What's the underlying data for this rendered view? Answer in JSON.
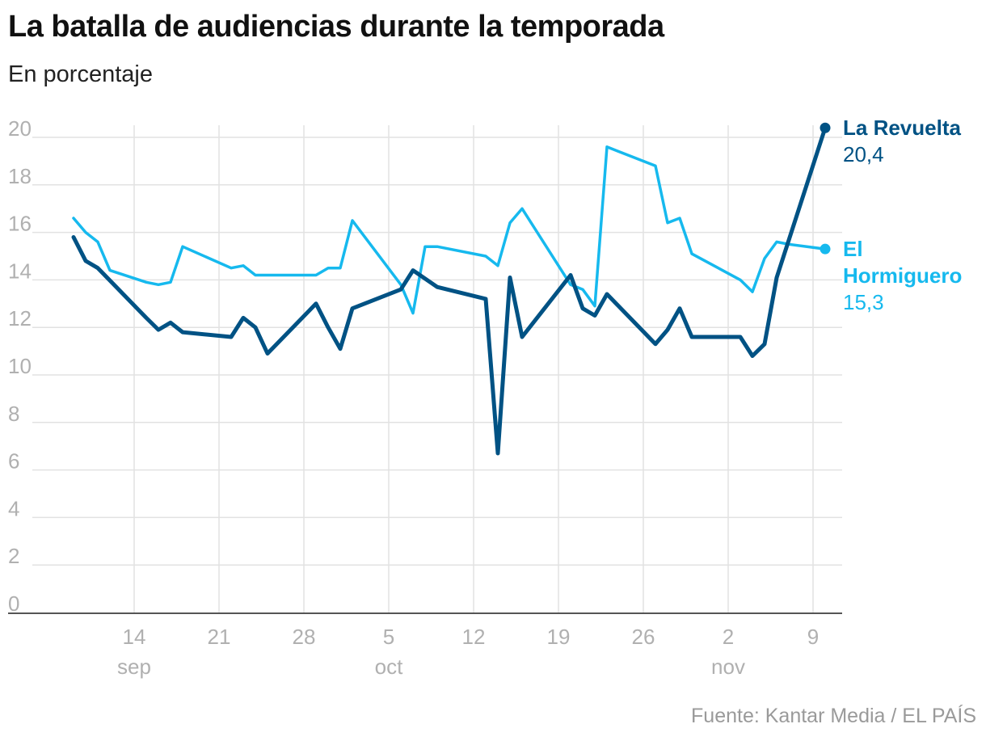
{
  "title": "La batalla de audiencias durante la temporada",
  "subtitle": "En porcentaje",
  "source": "Fuente: Kantar Media / EL PAÍS",
  "colors": {
    "la_revuelta": "#005284",
    "el_hormiguero": "#16b9ee",
    "grid": "#e2e2e2",
    "axis": "#555555",
    "tick_text": "#b0b0b0"
  },
  "chart_data": {
    "type": "line",
    "x_unit": "day",
    "ylim": [
      0,
      20
    ],
    "y_ticks": [
      "0",
      "2",
      "4",
      "6",
      "8",
      "10",
      "12",
      "14",
      "16",
      "18",
      "20"
    ],
    "x_ticks": [
      {
        "date": "2024-09-14",
        "label": "14",
        "month": "sep"
      },
      {
        "date": "2024-09-21",
        "label": "21",
        "month": ""
      },
      {
        "date": "2024-09-28",
        "label": "28",
        "month": ""
      },
      {
        "date": "2024-10-05",
        "label": "5",
        "month": "oct"
      },
      {
        "date": "2024-10-12",
        "label": "12",
        "month": ""
      },
      {
        "date": "2024-10-19",
        "label": "19",
        "month": ""
      },
      {
        "date": "2024-10-26",
        "label": "26",
        "month": ""
      },
      {
        "date": "2024-11-02",
        "label": "2",
        "month": "nov"
      },
      {
        "date": "2024-11-09",
        "label": "9",
        "month": ""
      }
    ],
    "grid": true,
    "series": [
      {
        "name": "El Hormiguero",
        "end_label_line1": "El",
        "end_label_line2": "Hormiguero",
        "end_value_label": "15,3",
        "color": "#16b9ee",
        "points": [
          [
            "2024-09-09",
            16.6
          ],
          [
            "2024-09-10",
            16.0
          ],
          [
            "2024-09-11",
            15.6
          ],
          [
            "2024-09-12",
            14.4
          ],
          [
            "2024-09-15",
            13.9
          ],
          [
            "2024-09-16",
            13.8
          ],
          [
            "2024-09-17",
            13.9
          ],
          [
            "2024-09-18",
            15.4
          ],
          [
            "2024-09-22",
            14.5
          ],
          [
            "2024-09-23",
            14.6
          ],
          [
            "2024-09-24",
            14.2
          ],
          [
            "2024-09-29",
            14.2
          ],
          [
            "2024-09-30",
            14.5
          ],
          [
            "2024-10-01",
            14.5
          ],
          [
            "2024-10-02",
            16.5
          ],
          [
            "2024-10-06",
            13.8
          ],
          [
            "2024-10-07",
            12.6
          ],
          [
            "2024-10-08",
            15.4
          ],
          [
            "2024-10-09",
            15.4
          ],
          [
            "2024-10-13",
            15.0
          ],
          [
            "2024-10-14",
            14.6
          ],
          [
            "2024-10-15",
            16.4
          ],
          [
            "2024-10-16",
            17.0
          ],
          [
            "2024-10-20",
            13.8
          ],
          [
            "2024-10-21",
            13.6
          ],
          [
            "2024-10-22",
            12.9
          ],
          [
            "2024-10-23",
            19.6
          ],
          [
            "2024-10-27",
            18.8
          ],
          [
            "2024-10-28",
            16.4
          ],
          [
            "2024-10-29",
            16.6
          ],
          [
            "2024-10-30",
            15.1
          ],
          [
            "2024-11-03",
            14.0
          ],
          [
            "2024-11-04",
            13.5
          ],
          [
            "2024-11-05",
            14.9
          ],
          [
            "2024-11-06",
            15.6
          ],
          [
            "2024-11-07",
            15.5
          ],
          [
            "2024-11-10",
            15.3
          ]
        ]
      },
      {
        "name": "La Revuelta",
        "end_label_line1": "La Revuelta",
        "end_label_line2": "",
        "end_value_label": "20,4",
        "color": "#005284",
        "points": [
          [
            "2024-09-09",
            15.8
          ],
          [
            "2024-09-10",
            14.8
          ],
          [
            "2024-09-11",
            14.5
          ],
          [
            "2024-09-15",
            12.4
          ],
          [
            "2024-09-16",
            11.9
          ],
          [
            "2024-09-17",
            12.2
          ],
          [
            "2024-09-18",
            11.8
          ],
          [
            "2024-09-22",
            11.6
          ],
          [
            "2024-09-23",
            12.4
          ],
          [
            "2024-09-24",
            12.0
          ],
          [
            "2024-09-25",
            10.9
          ],
          [
            "2024-09-29",
            13.0
          ],
          [
            "2024-09-30",
            12.0
          ],
          [
            "2024-10-01",
            11.1
          ],
          [
            "2024-10-02",
            12.8
          ],
          [
            "2024-10-06",
            13.6
          ],
          [
            "2024-10-07",
            14.4
          ],
          [
            "2024-10-09",
            13.7
          ],
          [
            "2024-10-13",
            13.2
          ],
          [
            "2024-10-14",
            6.7
          ],
          [
            "2024-10-15",
            14.1
          ],
          [
            "2024-10-16",
            11.6
          ],
          [
            "2024-10-20",
            14.2
          ],
          [
            "2024-10-21",
            12.8
          ],
          [
            "2024-10-22",
            12.5
          ],
          [
            "2024-10-23",
            13.4
          ],
          [
            "2024-10-27",
            11.3
          ],
          [
            "2024-10-28",
            11.9
          ],
          [
            "2024-10-29",
            12.8
          ],
          [
            "2024-10-30",
            11.6
          ],
          [
            "2024-11-03",
            11.6
          ],
          [
            "2024-11-04",
            10.8
          ],
          [
            "2024-11-05",
            11.3
          ],
          [
            "2024-11-06",
            14.1
          ],
          [
            "2024-11-10",
            20.4
          ]
        ]
      }
    ]
  }
}
